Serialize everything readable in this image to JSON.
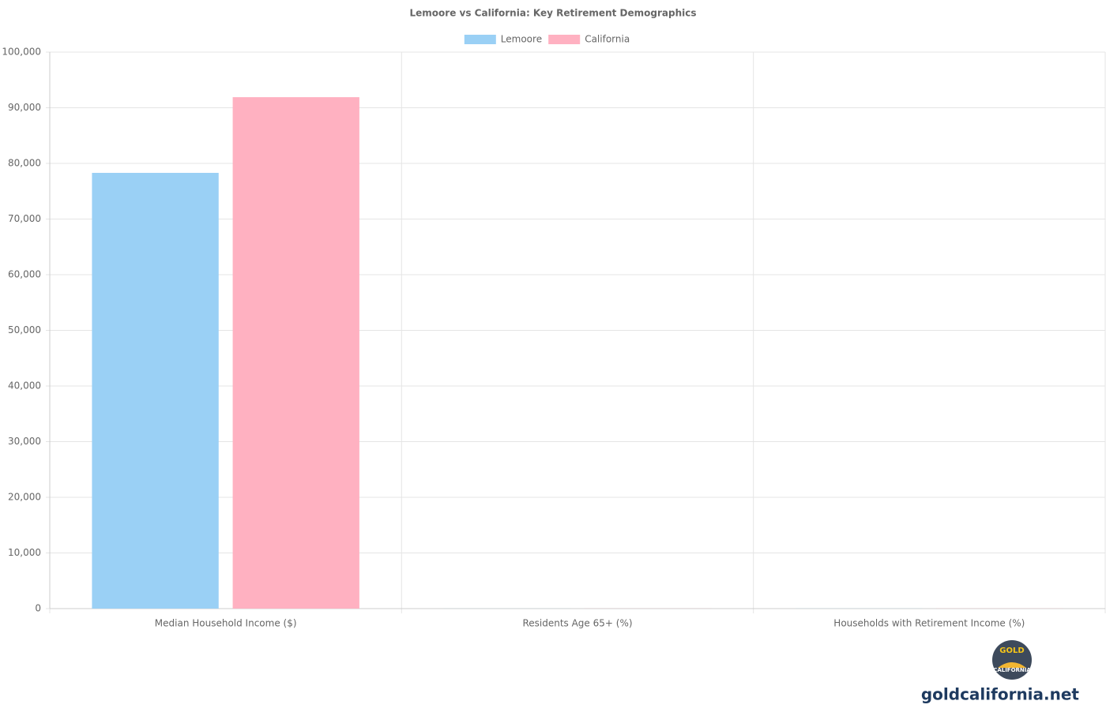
{
  "chart_data": {
    "type": "bar",
    "title": "Lemoore vs California: Key Retirement Demographics",
    "categories": [
      "Median Household Income ($)",
      "Residents Age 65+ (%)",
      "Households with Retirement Income (%)"
    ],
    "series": [
      {
        "name": "Lemoore",
        "color": "#9ad0f5",
        "values": [
          78300,
          9,
          14
        ]
      },
      {
        "name": "California",
        "color": "#ffb1c1",
        "values": [
          91900,
          15,
          19
        ]
      }
    ],
    "ylim": [
      0,
      100000
    ],
    "yticks": [
      0,
      {
        "value": 10000,
        "label": "10,000"
      },
      {
        "value": 20000,
        "label": "20,000"
      },
      {
        "value": 30000,
        "label": "30,000"
      },
      {
        "value": 40000,
        "label": "40,000"
      },
      {
        "value": 50000,
        "label": "50,000"
      },
      {
        "value": 60000,
        "label": "60,000"
      },
      {
        "value": 70000,
        "label": "70,000"
      },
      {
        "value": 80000,
        "label": "80,000"
      },
      {
        "value": 90000,
        "label": "90,000"
      },
      {
        "value": 100000,
        "label": "100,000"
      }
    ],
    "grid": true,
    "legend": "top"
  },
  "watermark": {
    "logo_top": "GOLD",
    "logo_bottom": "CALIFORNIA",
    "site": "goldcalifornia.net"
  }
}
